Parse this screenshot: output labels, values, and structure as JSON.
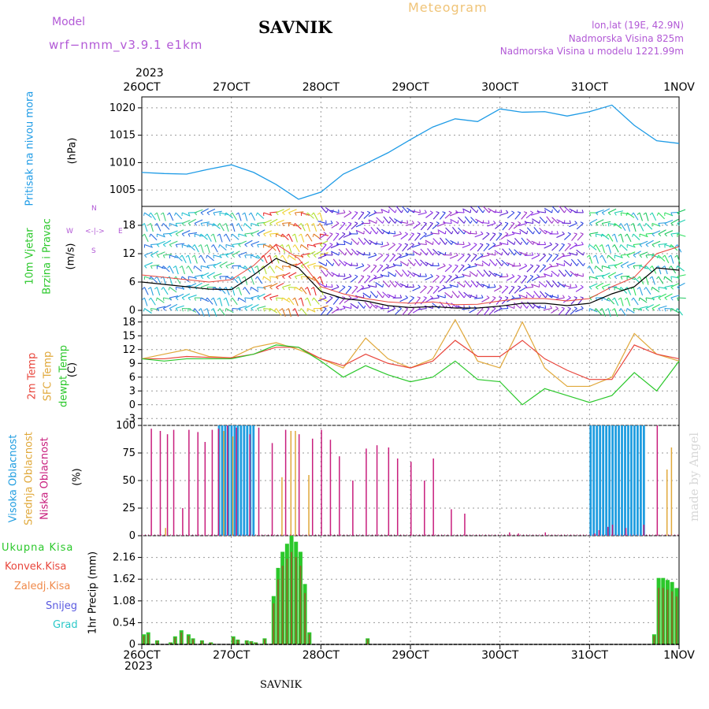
{
  "header": {
    "model_label": "Model",
    "model_name": "wrf−nmm_v3.9.1  e1km",
    "station": "SAVNIK",
    "product": "Meteogram",
    "coords": "lon,lat (19E, 42.9N)",
    "elevation": "Nadmorska Visina 825m",
    "model_elevation": "Nadmorska Visina u modelu 1221.99m",
    "year_top": "2023",
    "year_bottom": "2023",
    "footer_station": "SAVNIK",
    "credit": "made by Angel"
  },
  "colors": {
    "pressure": "#1e9be6",
    "temp2m": "#e8463c",
    "sfc_temp": "#e0a83a",
    "dewpoint": "#2bc82b",
    "high_cloud": "#1f9de0",
    "mid_cloud": "#e0a83a",
    "low_cloud": "#c81e7d",
    "total_precip": "#2bc82b",
    "conv_precip": "#e8463c",
    "wind_speed": "#000000",
    "gust": "#e8463c"
  },
  "chart_data": [
    {
      "type": "line",
      "panel": "pressure",
      "ylabel_colored": "Pritisak na nivou mora",
      "ylabel_unit": "(hPa)",
      "x_ticks": [
        "26OCT",
        "27OCT",
        "28OCT",
        "29OCT",
        "30OCT",
        "31OCT",
        "1NOV"
      ],
      "y_ticks": [
        1005,
        1010,
        1015,
        1020
      ],
      "ylim": [
        1002,
        1022
      ],
      "x": [
        0,
        0.25,
        0.5,
        0.75,
        1.0,
        1.25,
        1.5,
        1.75,
        2.0,
        2.25,
        2.5,
        2.75,
        3.0,
        3.25,
        3.5,
        3.75,
        4.0,
        4.25,
        4.5,
        4.75,
        5.0,
        5.25,
        5.5,
        5.75,
        6.0
      ],
      "series": [
        {
          "values": [
            1008.2,
            1008.0,
            1007.9,
            1008.8,
            1009.6,
            1008.2,
            1006.0,
            1003.3,
            1004.6,
            1007.9,
            1009.8,
            1011.8,
            1014.2,
            1016.5,
            1018.0,
            1017.5,
            1019.8,
            1019.2,
            1019.3,
            1018.5,
            1019.3,
            1020.5,
            1016.8,
            1014.0,
            1013.5
          ]
        }
      ]
    },
    {
      "type": "line",
      "panel": "wind",
      "ylabel_colored": "10m Vjetar Brzina i Pravac",
      "ylabel_unit": "(m/s)",
      "direction_legend": [
        "N",
        "W",
        "E",
        "S"
      ],
      "y_ticks": [
        0,
        6,
        12,
        18
      ],
      "ylim": [
        -1,
        22
      ],
      "x": [
        0,
        0.25,
        0.5,
        0.75,
        1.0,
        1.25,
        1.5,
        1.75,
        2.0,
        2.25,
        2.5,
        2.75,
        3.0,
        3.25,
        3.5,
        3.75,
        4.0,
        4.25,
        4.5,
        4.75,
        5.0,
        5.25,
        5.5,
        5.75,
        6.0
      ],
      "series": [
        {
          "values": [
            6.0,
            5.5,
            5.0,
            4.5,
            4.4,
            7.5,
            11.0,
            9.0,
            4.0,
            2.5,
            2.0,
            1.0,
            0.6,
            0.8,
            0.5,
            0.5,
            0.9,
            1.5,
            1.5,
            1.0,
            1.5,
            3.5,
            5.0,
            9.0,
            8.5
          ]
        },
        {
          "values": [
            7.5,
            7.0,
            6.5,
            6.0,
            6.5,
            9.5,
            14.0,
            11.0,
            5.0,
            3.5,
            2.5,
            1.8,
            1.5,
            1.8,
            1.2,
            1.3,
            2.0,
            2.5,
            2.5,
            2.0,
            2.5,
            5.0,
            7.0,
            12.0,
            13.5
          ]
        }
      ]
    },
    {
      "type": "line",
      "panel": "temperature",
      "ylabel_colored": [
        "2m Temp",
        "SFC Temp",
        "dewpt Temp"
      ],
      "ylabel_unit": "(C)",
      "y_ticks": [
        -3,
        0,
        3,
        6,
        9,
        12,
        15,
        18
      ],
      "ylim": [
        -4.5,
        19.5
      ],
      "x": [
        0,
        0.25,
        0.5,
        0.75,
        1.0,
        1.25,
        1.5,
        1.75,
        2.0,
        2.25,
        2.5,
        2.75,
        3.0,
        3.25,
        3.5,
        3.75,
        4.0,
        4.25,
        4.5,
        4.75,
        5.0,
        5.25,
        5.5,
        5.75,
        6.0
      ],
      "series": [
        {
          "values": [
            10.0,
            10.0,
            10.5,
            10.3,
            10.2,
            11.0,
            12.5,
            12.5,
            10.0,
            8.5,
            11.0,
            9.0,
            8.0,
            9.5,
            14.0,
            10.5,
            10.5,
            14.0,
            10.0,
            7.5,
            5.5,
            5.5,
            13.0,
            11.0,
            10.0
          ]
        },
        {
          "values": [
            10.0,
            11.0,
            12.0,
            10.5,
            10.2,
            12.5,
            13.5,
            12.0,
            10.0,
            8.0,
            14.5,
            10.0,
            8.0,
            10.0,
            18.5,
            9.5,
            8.0,
            18.0,
            8.0,
            4.0,
            4.0,
            6.0,
            15.5,
            11.0,
            9.5
          ]
        },
        {
          "values": [
            10.0,
            9.5,
            10.0,
            10.0,
            10.0,
            11.0,
            13.0,
            12.5,
            9.5,
            6.0,
            8.5,
            6.5,
            5.0,
            6.0,
            9.5,
            5.5,
            5.0,
            0.0,
            3.5,
            2.0,
            0.5,
            2.0,
            7.0,
            3.0,
            9.5
          ]
        }
      ]
    },
    {
      "type": "bar",
      "panel": "cloud",
      "ylabel_colored": [
        "Visoka Oblacnost",
        "Srednja Oblacnost",
        "Niska Oblacnost"
      ],
      "ylabel_unit": "(%)",
      "y_ticks": [
        0,
        25,
        50,
        75,
        100
      ],
      "ylim": [
        0,
        100
      ],
      "low_x": [
        0.1,
        0.2,
        0.28,
        0.35,
        0.45,
        0.52,
        0.62,
        0.7,
        0.78,
        0.85,
        0.95,
        1.05,
        1.2,
        1.3,
        1.45,
        1.6,
        1.75,
        1.9,
        2.0,
        2.1,
        2.2,
        2.35,
        2.5,
        2.62,
        2.75,
        2.85,
        3.0,
        3.15,
        3.25,
        3.45,
        3.6,
        4.1,
        4.2,
        4.5,
        5.05,
        5.1,
        5.2,
        5.25,
        5.4,
        5.6,
        5.75
      ],
      "low_values": [
        97,
        95,
        92,
        96,
        25,
        96,
        94,
        85,
        96,
        97,
        100,
        98,
        92,
        98,
        84,
        96,
        92,
        88,
        96,
        87,
        72,
        50,
        79,
        82,
        80,
        70,
        67,
        50,
        70,
        24,
        20,
        3,
        2,
        3,
        2,
        5,
        8,
        10,
        7,
        10,
        100
      ],
      "mid_x": [
        0.25,
        0.9,
        1.0,
        1.55,
        1.65,
        1.7,
        1.85,
        5.85,
        5.9
      ],
      "mid_values": [
        7,
        95,
        90,
        53,
        95,
        95,
        55,
        60,
        80
      ],
      "high_ranges": [
        [
          0.85,
          1.25,
          100
        ],
        [
          5.0,
          5.6,
          100
        ]
      ]
    },
    {
      "type": "bar",
      "panel": "precipitation",
      "ylabel_colored": [
        "Ukupna Kisa",
        "Konvek.Kisa",
        "Zaledj.Kisa",
        "Snijeg",
        "Grad"
      ],
      "ylabel_unit": "1hr Precip (mm)",
      "y_ticks": [
        0,
        0.54,
        1.08,
        1.62,
        2.16
      ],
      "ylim": [
        0,
        2.7
      ],
      "x": [
        0.0,
        0.05,
        0.15,
        0.3,
        0.35,
        0.42,
        0.5,
        0.55,
        0.65,
        0.75,
        1.0,
        1.05,
        1.15,
        1.2,
        1.25,
        1.35,
        1.45,
        1.5,
        1.55,
        1.6,
        1.65,
        1.7,
        1.75,
        1.8,
        1.85,
        2.5,
        5.7,
        5.75,
        5.8,
        5.85,
        5.9,
        5.95
      ],
      "values": [
        0.25,
        0.3,
        0.1,
        0.05,
        0.2,
        0.35,
        0.25,
        0.15,
        0.1,
        0.05,
        0.2,
        0.12,
        0.1,
        0.08,
        0.05,
        0.15,
        1.2,
        1.9,
        2.3,
        2.5,
        2.7,
        2.55,
        2.3,
        1.5,
        0.3,
        0.15,
        0.25,
        1.65,
        1.65,
        1.6,
        1.55,
        1.4
      ],
      "legend": [
        "Ukupna Kisa",
        "Konvek.Kisa",
        "Zaledj.Kisa",
        "Snijeg",
        "Grad"
      ]
    }
  ]
}
